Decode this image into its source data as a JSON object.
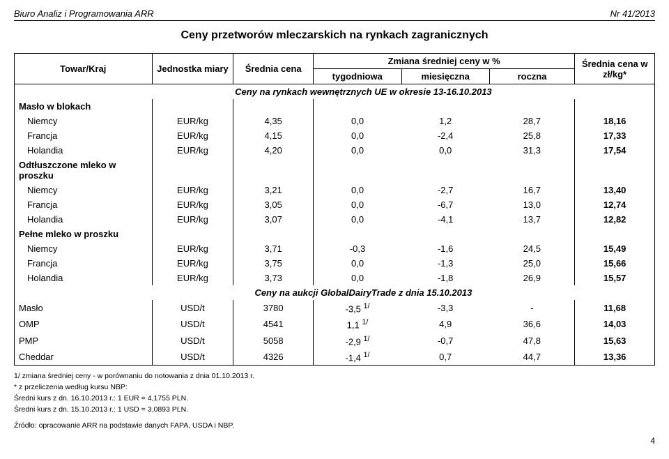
{
  "header": {
    "left": "Biuro Analiz i Programowania ARR",
    "right": "Nr 41/2013"
  },
  "title": "Ceny przetworów mleczarskich na rynkach zagranicznych",
  "columns": {
    "towar": "Towar/Kraj",
    "jednostka": "Jednostka miary",
    "srednia_cena": "Średnia cena",
    "zmiana_header": "Zmiana średniej ceny w %",
    "tygodniowa": "tygodniowa",
    "miesieczna": "miesięczna",
    "roczna": "roczna",
    "srednia_cena2": "Średnia cena w zł/kg*"
  },
  "section1_title": "Ceny na rynkach wewnętrznych UE w okresie 13-16.10.2013",
  "groups": [
    {
      "name": "Masło w blokach",
      "rows": [
        {
          "kraj": "Niemcy",
          "jedn": "EUR/kg",
          "avg": "4,35",
          "tyg": "0,0",
          "mies": "1,2",
          "rocz": "28,7",
          "cena": "18,16"
        },
        {
          "kraj": "Francja",
          "jedn": "EUR/kg",
          "avg": "4,15",
          "tyg": "0,0",
          "mies": "-2,4",
          "rocz": "25,8",
          "cena": "17,33"
        },
        {
          "kraj": "Holandia",
          "jedn": "EUR/kg",
          "avg": "4,20",
          "tyg": "0,0",
          "mies": "0,0",
          "rocz": "31,3",
          "cena": "17,54"
        }
      ]
    },
    {
      "name": "Odtłuszczone mleko w proszku",
      "rows": [
        {
          "kraj": "Niemcy",
          "jedn": "EUR/kg",
          "avg": "3,21",
          "tyg": "0,0",
          "mies": "-2,7",
          "rocz": "16,7",
          "cena": "13,40"
        },
        {
          "kraj": "Francja",
          "jedn": "EUR/kg",
          "avg": "3,05",
          "tyg": "0,0",
          "mies": "-6,7",
          "rocz": "13,0",
          "cena": "12,74"
        },
        {
          "kraj": "Holandia",
          "jedn": "EUR/kg",
          "avg": "3,07",
          "tyg": "0,0",
          "mies": "-4,1",
          "rocz": "13,7",
          "cena": "12,82"
        }
      ]
    },
    {
      "name": "Pełne mleko w proszku",
      "rows": [
        {
          "kraj": "Niemcy",
          "jedn": "EUR/kg",
          "avg": "3,71",
          "tyg": "-0,3",
          "mies": "-1,6",
          "rocz": "24,5",
          "cena": "15,49"
        },
        {
          "kraj": "Francja",
          "jedn": "EUR/kg",
          "avg": "3,75",
          "tyg": "0,0",
          "mies": "-1,3",
          "rocz": "25,0",
          "cena": "15,66"
        },
        {
          "kraj": "Holandia",
          "jedn": "EUR/kg",
          "avg": "3,73",
          "tyg": "0,0",
          "mies": "-1,8",
          "rocz": "26,9",
          "cena": "15,57"
        }
      ]
    }
  ],
  "section2_title": "Ceny na aukcji GlobalDairyTrade z dnia 15.10.2013",
  "auction_rows": [
    {
      "towar": "Masło",
      "jedn": "USD/t",
      "avg": "3780",
      "tyg": "-3,5 ",
      "sup": "1/",
      "mies": "-3,3",
      "rocz": "-",
      "cena": "11,68"
    },
    {
      "towar": "OMP",
      "jedn": "USD/t",
      "avg": "4541",
      "tyg": "1,1 ",
      "sup": "1/",
      "mies": "4,9",
      "rocz": "36,6",
      "cena": "14,03"
    },
    {
      "towar": "PMP",
      "jedn": "USD/t",
      "avg": "5058",
      "tyg": "-2,9 ",
      "sup": "1/",
      "mies": "-0,7",
      "rocz": "47,8",
      "cena": "15,63"
    },
    {
      "towar": "Cheddar",
      "jedn": "USD/t",
      "avg": "4326",
      "tyg": "-1,4 ",
      "sup": "1/",
      "mies": "0,7",
      "rocz": "44,7",
      "cena": "13,36"
    }
  ],
  "footnotes": [
    "1/ zmiana średniej ceny  - w porównaniu do notowania z dnia 01.10.2013 r.",
    "* z przeliczenia według kursu NBP:",
    "Średni kurs z dn. 16.10.2013 r.: 1 EUR = 4,1755 PLN.",
    "Średni kurs z dn. 15.10.2013 r.: 1 USD = 3,0893 PLN.",
    "Źródło: opracowanie ARR na podstawie danych FAPA, USDA i NBP."
  ],
  "page_number": "4"
}
